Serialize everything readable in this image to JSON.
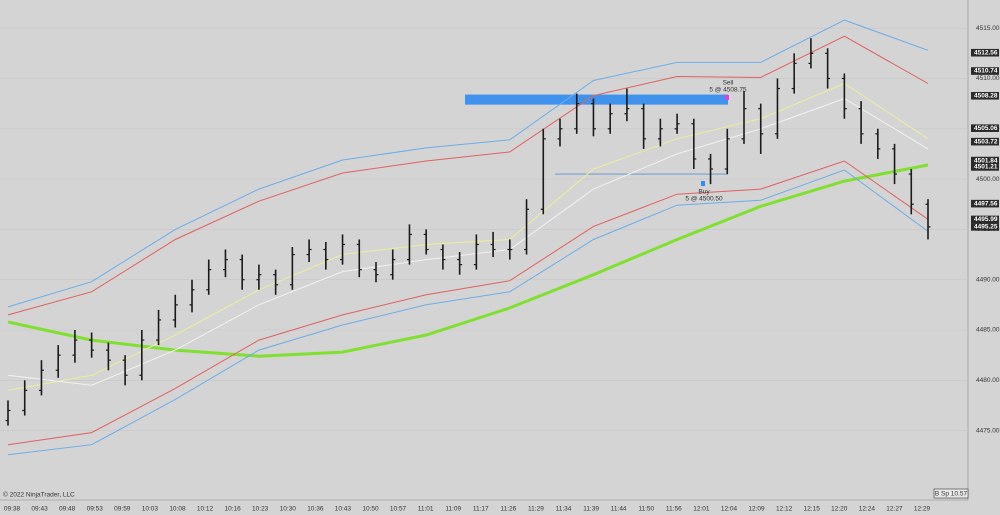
{
  "chart_data": {
    "type": "ohlc",
    "copyright": "© 2022 NinjaTrader, LLC",
    "status_box": "B Sp 10.57",
    "x_labels": [
      "09:38",
      "09:43",
      "09:48",
      "09:53",
      "09:59",
      "10:03",
      "10:08",
      "10:12",
      "10:16",
      "10:23",
      "10:30",
      "10:36",
      "10:43",
      "10:50",
      "10:57",
      "11:01",
      "11:09",
      "11:17",
      "11:26",
      "11:29",
      "11:34",
      "11:39",
      "11:44",
      "11:50",
      "11:56",
      "12:01",
      "12:04",
      "12:09",
      "12:12",
      "12:15",
      "12:20",
      "12:24",
      "12:27",
      "12:29"
    ],
    "ylim": [
      4468.6,
      4517.8
    ],
    "yticks": [
      {
        "value": 4475,
        "label": "4475.00"
      },
      {
        "value": 4480,
        "label": "4480.00"
      },
      {
        "value": 4485,
        "label": "4485.00"
      },
      {
        "value": 4490,
        "label": "4490.00"
      },
      {
        "value": 4495,
        "label": "4495.00"
      },
      {
        "value": 4500,
        "label": "4500.00"
      },
      {
        "value": 4505,
        "label": "4505.00"
      },
      {
        "value": 4510,
        "label": "4510.00"
      },
      {
        "value": 4515,
        "label": "4515.00"
      }
    ],
    "grid": true,
    "bar_color": "#1a1a1a",
    "open": [
      4476,
      4477,
      4479,
      4481,
      4482.5,
      4484,
      4483,
      4482,
      4480.5,
      4484,
      4486,
      4487.5,
      4489,
      4491,
      4492,
      4490,
      4490.5,
      4489.5,
      4492.5,
      4493,
      4492,
      4493.5,
      4491,
      4490.5,
      4492,
      4494.5,
      4493,
      4492,
      4491.5,
      4493.5,
      4493,
      4493,
      4497,
      4504,
      4505,
      4507.5,
      4505,
      4506.5,
      4507,
      4504,
      4505,
      4505.5,
      4502,
      4501,
      4504,
      4507,
      4504.5,
      4509,
      4511.5,
      4512.5,
      4510,
      4507,
      4504.5,
      4503,
      4500.5,
      4497.5
    ],
    "high": [
      4478,
      4480,
      4482,
      4483.5,
      4485,
      4484.75,
      4483.75,
      4482.5,
      4485,
      4487,
      4488.5,
      4490,
      4492,
      4493,
      4492.5,
      4491.5,
      4491,
      4493.25,
      4494,
      4493.75,
      4494.5,
      4494,
      4491.75,
      4493,
      4495.5,
      4495,
      4493.5,
      4492.75,
      4494.5,
      4494.75,
      4494,
      4498,
      4505,
      4506,
      4508.5,
      4508,
      4507.5,
      4509,
      4507.5,
      4506,
      4506.5,
      4506,
      4502.5,
      4505,
      4508.75,
      4507.5,
      4510,
      4512.5,
      4514,
      4513,
      4510.5,
      4507.75,
      4505,
      4503.5,
      4501,
      4498
    ],
    "low": [
      4475.5,
      4476.5,
      4478.5,
      4480.25,
      4481.75,
      4482.25,
      4481,
      4479.5,
      4480,
      4483.5,
      4485.25,
      4486.75,
      4488.5,
      4490.25,
      4489,
      4489,
      4488.5,
      4489,
      4491.75,
      4491,
      4491.5,
      4490.25,
      4489.75,
      4490,
      4491.5,
      4492.5,
      4491,
      4490.5,
      4491,
      4492.25,
      4492,
      4492.5,
      4496.5,
      4503.25,
      4504.5,
      4504.25,
      4504.5,
      4505.75,
      4503,
      4503.25,
      4504.5,
      4501,
      4499.5,
      4500.5,
      4503.5,
      4502.5,
      4504,
      4508.5,
      4511,
      4509,
      4506,
      4503.5,
      4502,
      4499.5,
      4496.5,
      4494
    ],
    "close": [
      4477,
      4479,
      4481,
      4482.5,
      4484,
      4483,
      4482,
      4480.5,
      4484,
      4486,
      4487.5,
      4489,
      4491,
      4492,
      4490,
      4490.5,
      4489.5,
      4492.5,
      4493,
      4492,
      4493.5,
      4491,
      4490.5,
      4492,
      4494.5,
      4493,
      4492,
      4491.5,
      4493.5,
      4493,
      4493,
      4497,
      4504,
      4505,
      4507.5,
      4505,
      4506.5,
      4507,
      4504,
      4505,
      4505.5,
      4502,
      4501,
      4504,
      4507,
      4504.5,
      4509,
      4511.5,
      4512.5,
      4510,
      4507,
      4504.5,
      4503,
      4500.5,
      4497.5,
      4495.25
    ],
    "indicator_x": [
      0,
      5,
      10,
      15,
      20,
      25,
      30,
      35,
      40,
      45,
      50,
      55
    ],
    "indicators": [
      {
        "color": "#7fe030",
        "values": [
          4485.8,
          4484,
          4483,
          4482.4,
          4482.8,
          4484.5,
          4487.2,
          4490.5,
          4494,
          4497.3,
          4499.8,
          4501.4
        ]
      },
      {
        "color": "#6aaee8",
        "values": [
          4487.3,
          4489.8,
          4495,
          4499,
          4501.9,
          4503.1,
          4503.9,
          4509.8,
          4511.6,
          4511.6,
          4515.8,
          4512.8
        ]
      },
      {
        "color": "#6aaee8",
        "values": [
          4472.6,
          4473.6,
          4478.1,
          4483,
          4485.5,
          4487.5,
          4488.8,
          4494,
          4497.4,
          4497.9,
          4500.9,
          4494.8
        ]
      },
      {
        "color": "#e06060",
        "values": [
          4486.5,
          4488.8,
          4494,
          4497.8,
          4500.6,
          4501.8,
          4502.7,
          4508.3,
          4510.2,
          4510.1,
          4514.2,
          4509.5
        ]
      },
      {
        "color": "#e06060",
        "values": [
          4473.6,
          4474.8,
          4479.2,
          4484,
          4486.5,
          4488.5,
          4489.9,
          4495.3,
          4498.5,
          4499,
          4501.8,
          4496
        ]
      },
      {
        "color": "#eeee99",
        "values": [
          4479,
          4480.5,
          4484.5,
          4489,
          4492.5,
          4493.5,
          4494,
          4501,
          4504,
          4506,
          4509.5,
          4504
        ]
      },
      {
        "color": "#f2f2f2",
        "values": [
          4480.5,
          4479.5,
          4483,
          4487.5,
          4490.8,
          4492,
          4493,
          4499,
          4502.5,
          4505,
          4508,
          4503
        ]
      }
    ],
    "zone": {
      "low": 4507.4,
      "high": 4508.4,
      "color": "#2f8cf0"
    },
    "level": 4500.5,
    "sell": {
      "title": "Sell",
      "text": "5 @ 4508.75"
    },
    "buy": {
      "title": "Buy",
      "text": "5 @ 4500.50"
    },
    "price_markers": [
      {
        "value": 4512.56,
        "label": "4512.56"
      },
      {
        "value": 4510.74,
        "label": "4510.74"
      },
      {
        "value": 4508.28,
        "label": "4508.28"
      },
      {
        "value": 4505.06,
        "label": "4505.06"
      },
      {
        "value": 4503.72,
        "label": "4503.72"
      },
      {
        "value": 4501.84,
        "label": "4501.84"
      },
      {
        "value": 4501.21,
        "label": "4501.21"
      },
      {
        "value": 4497.56,
        "label": "4497.56"
      },
      {
        "value": 4495.99,
        "label": "4495.99"
      },
      {
        "value": 4495.25,
        "label": "4495.25"
      }
    ]
  }
}
